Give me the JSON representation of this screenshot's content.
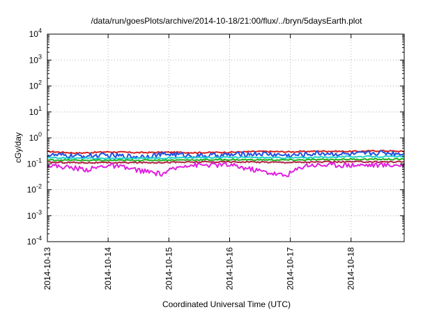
{
  "chart_data": {
    "type": "line",
    "title": "/data/run/goesPlots/archive/2014-10-18/21:00/flux/../bryn/5daysEarth.plot",
    "xlabel": "Coordinated Universal Time (UTC)",
    "ylabel": "cGy/day",
    "yscale": "log",
    "ylim": [
      0.0001,
      10000
    ],
    "y_ticks": [
      {
        "value": 0.0001,
        "base": "10",
        "exp": "-4"
      },
      {
        "value": 0.001,
        "base": "10",
        "exp": "-3"
      },
      {
        "value": 0.01,
        "base": "10",
        "exp": "-2"
      },
      {
        "value": 0.1,
        "base": "10",
        "exp": "-1"
      },
      {
        "value": 1,
        "base": "10",
        "exp": "0"
      },
      {
        "value": 10,
        "base": "10",
        "exp": "1"
      },
      {
        "value": 100,
        "base": "10",
        "exp": "2"
      },
      {
        "value": 1000,
        "base": "10",
        "exp": "3"
      },
      {
        "value": 10000,
        "base": "10",
        "exp": "4"
      }
    ],
    "x_ticks": [
      "2014-10-13",
      "2014-10-14",
      "2014-10-15",
      "2014-10-16",
      "2014-10-17",
      "2014-10-18"
    ],
    "xlim": [
      "2014-10-13T00:00",
      "2014-10-18T21:00"
    ],
    "grid": true,
    "legend": "none",
    "series": [
      {
        "color": "#d62020",
        "level": 0.3,
        "points": [
          [
            "2014-10-13T00:00",
            0.3
          ],
          [
            "2014-10-13T12:00",
            0.26
          ],
          [
            "2014-10-14T00:00",
            0.29
          ],
          [
            "2014-10-14T12:00",
            0.27
          ],
          [
            "2014-10-15T00:00",
            0.28
          ],
          [
            "2014-10-15T12:00",
            0.27
          ],
          [
            "2014-10-16T00:00",
            0.28
          ],
          [
            "2014-10-16T12:00",
            0.3
          ],
          [
            "2014-10-17T00:00",
            0.29
          ],
          [
            "2014-10-17T12:00",
            0.31
          ],
          [
            "2014-10-18T00:00",
            0.3
          ],
          [
            "2014-10-18T12:00",
            0.32
          ],
          [
            "2014-10-18T21:00",
            0.3
          ]
        ]
      },
      {
        "color": "#2050e0",
        "level": 0.22,
        "points": [
          [
            "2014-10-13T00:00",
            0.22
          ],
          [
            "2014-10-13T12:00",
            0.2
          ],
          [
            "2014-10-14T00:00",
            0.21
          ],
          [
            "2014-10-14T12:00",
            0.19
          ],
          [
            "2014-10-15T00:00",
            0.24
          ],
          [
            "2014-10-15T12:00",
            0.2
          ],
          [
            "2014-10-16T00:00",
            0.22
          ],
          [
            "2014-10-16T12:00",
            0.25
          ],
          [
            "2014-10-17T00:00",
            0.21
          ],
          [
            "2014-10-17T12:00",
            0.26
          ],
          [
            "2014-10-18T00:00",
            0.23
          ],
          [
            "2014-10-18T12:00",
            0.27
          ],
          [
            "2014-10-18T21:00",
            0.25
          ]
        ]
      },
      {
        "color": "#20d0d0",
        "level": 0.18,
        "points": [
          [
            "2014-10-13T00:00",
            0.17
          ],
          [
            "2014-10-14T00:00",
            0.16
          ],
          [
            "2014-10-15T00:00",
            0.17
          ],
          [
            "2014-10-16T00:00",
            0.18
          ],
          [
            "2014-10-17T00:00",
            0.17
          ],
          [
            "2014-10-18T00:00",
            0.19
          ],
          [
            "2014-10-18T21:00",
            0.19
          ]
        ]
      },
      {
        "color": "#20b020",
        "level": 0.14,
        "points": [
          [
            "2014-10-13T00:00",
            0.14
          ],
          [
            "2014-10-14T00:00",
            0.135
          ],
          [
            "2014-10-15T00:00",
            0.14
          ],
          [
            "2014-10-16T00:00",
            0.145
          ],
          [
            "2014-10-17T00:00",
            0.14
          ],
          [
            "2014-10-18T00:00",
            0.15
          ],
          [
            "2014-10-18T21:00",
            0.15
          ]
        ]
      },
      {
        "color": "#b02040",
        "level": 0.115,
        "points": [
          [
            "2014-10-13T00:00",
            0.115
          ],
          [
            "2014-10-14T00:00",
            0.11
          ],
          [
            "2014-10-15T00:00",
            0.115
          ],
          [
            "2014-10-16T00:00",
            0.12
          ],
          [
            "2014-10-17T00:00",
            0.115
          ],
          [
            "2014-10-18T00:00",
            0.12
          ],
          [
            "2014-10-18T21:00",
            0.12
          ]
        ]
      },
      {
        "color": "#e020e0",
        "level": 0.09,
        "points": [
          [
            "2014-10-13T00:00",
            0.09
          ],
          [
            "2014-10-13T16:00",
            0.06
          ],
          [
            "2014-10-14T00:00",
            0.09
          ],
          [
            "2014-10-14T21:00",
            0.04
          ],
          [
            "2014-10-15T06:00",
            0.09
          ],
          [
            "2014-10-16T00:00",
            0.09
          ],
          [
            "2014-10-16T22:00",
            0.035
          ],
          [
            "2014-10-17T06:00",
            0.09
          ],
          [
            "2014-10-18T00:00",
            0.09
          ],
          [
            "2014-10-18T21:00",
            0.09
          ]
        ]
      }
    ]
  }
}
